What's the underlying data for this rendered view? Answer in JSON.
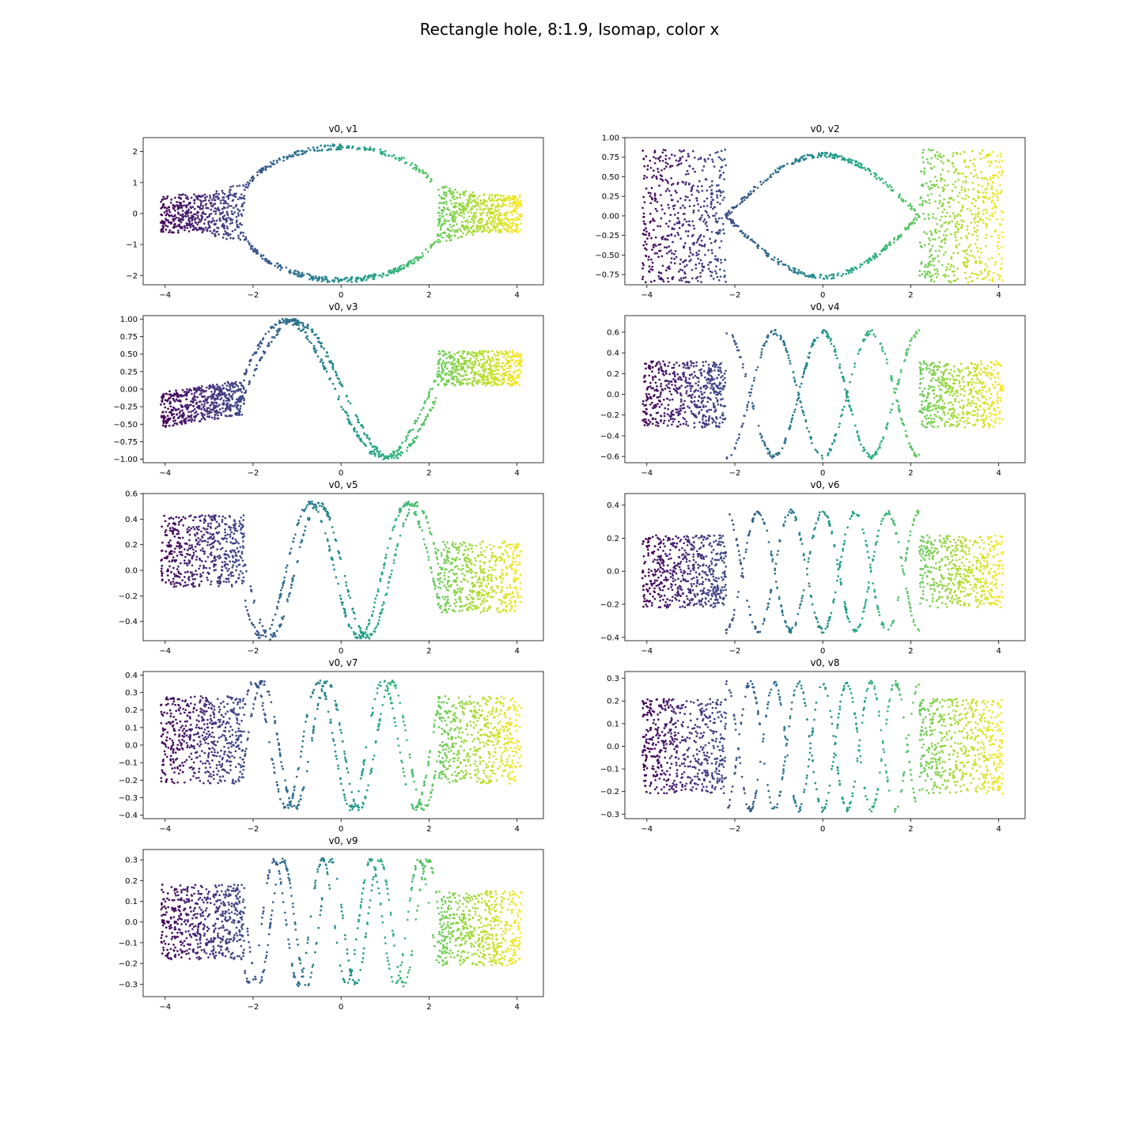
{
  "figure": {
    "title": "Rectangle hole, 8:1.9, Isomap, color x"
  },
  "chart_data": [
    {
      "type": "scatter",
      "title": "v0, v1",
      "xlabel": "",
      "ylabel": "",
      "xlim": [
        -4.5,
        4.6
      ],
      "ylim": [
        -2.3,
        2.45
      ],
      "xticks": [
        -4,
        -2,
        0,
        2,
        4
      ],
      "xtick_labels": [
        "−4",
        "−2",
        "0",
        "2",
        "4"
      ],
      "yticks": [
        -2,
        -1,
        0,
        1,
        2
      ],
      "ytick_labels": [
        "−2",
        "−1",
        "0",
        "1",
        "2"
      ],
      "colormap": "viridis",
      "color_by": "x",
      "wave": {
        "kind": "ellipse",
        "amp": 2.15,
        "end_spread": 0.65
      },
      "grid": false
    },
    {
      "type": "scatter",
      "title": "v0, v2",
      "xlabel": "",
      "ylabel": "",
      "xlim": [
        -4.5,
        4.6
      ],
      "ylim": [
        -0.88,
        1.0
      ],
      "xticks": [
        -4,
        -2,
        0,
        2,
        4
      ],
      "xtick_labels": [
        "−4",
        "−2",
        "0",
        "2",
        "4"
      ],
      "yticks": [
        -0.75,
        -0.5,
        -0.25,
        0.0,
        0.25,
        0.5,
        0.75,
        1.0
      ],
      "ytick_labels": [
        "−0.75",
        "−0.50",
        "−0.25",
        "0.00",
        "0.25",
        "0.50",
        "0.75",
        "1.00"
      ],
      "colormap": "viridis",
      "color_by": "x",
      "wave": {
        "kind": "cross",
        "amp": 0.78,
        "k": 1,
        "end_spread": 0.85
      },
      "grid": false
    },
    {
      "type": "scatter",
      "title": "v0, v3",
      "xlabel": "",
      "ylabel": "",
      "xlim": [
        -4.5,
        4.6
      ],
      "ylim": [
        -1.05,
        1.05
      ],
      "xticks": [
        -4,
        -2,
        0,
        2,
        4
      ],
      "xtick_labels": [
        "−4",
        "−2",
        "0",
        "2",
        "4"
      ],
      "yticks": [
        -1.0,
        -0.75,
        -0.5,
        -0.25,
        0.0,
        0.25,
        0.5,
        0.75,
        1.0
      ],
      "ytick_labels": [
        "−1.00",
        "−0.75",
        "−0.50",
        "−0.25",
        "0.00",
        "0.25",
        "0.50",
        "0.75",
        "1.00"
      ],
      "colormap": "viridis",
      "color_by": "x",
      "wave": {
        "kind": "single",
        "amp": 0.97,
        "k": 1,
        "end_spread": 0.25,
        "left_center": -0.3,
        "right_center": 0.3
      },
      "grid": false
    },
    {
      "type": "scatter",
      "title": "v0, v4",
      "xlabel": "",
      "ylabel": "",
      "xlim": [
        -4.5,
        4.6
      ],
      "ylim": [
        -0.66,
        0.76
      ],
      "xticks": [
        -4,
        -2,
        0,
        2,
        4
      ],
      "xtick_labels": [
        "−4",
        "−2",
        "0",
        "2",
        "4"
      ],
      "yticks": [
        -0.6,
        -0.4,
        -0.2,
        0.0,
        0.2,
        0.4,
        0.6
      ],
      "ytick_labels": [
        "−0.6",
        "−0.4",
        "−0.2",
        "0.0",
        "0.2",
        "0.4",
        "0.6"
      ],
      "colormap": "viridis",
      "color_by": "x",
      "wave": {
        "kind": "cross",
        "amp": 0.6,
        "k": 3,
        "end_spread": 0.32
      },
      "grid": false
    },
    {
      "type": "scatter",
      "title": "v0, v5",
      "xlabel": "",
      "ylabel": "",
      "xlim": [
        -4.5,
        4.6
      ],
      "ylim": [
        -0.55,
        0.6
      ],
      "xticks": [
        -4,
        -2,
        0,
        2,
        4
      ],
      "xtick_labels": [
        "−4",
        "−2",
        "0",
        "2",
        "4"
      ],
      "yticks": [
        -0.4,
        -0.2,
        0.0,
        0.2,
        0.4,
        0.6
      ],
      "ytick_labels": [
        "−0.4",
        "−0.2",
        "0.0",
        "0.2",
        "0.4",
        "0.6"
      ],
      "colormap": "viridis",
      "color_by": "x",
      "wave": {
        "kind": "single",
        "amp": 0.52,
        "k": 3,
        "end_spread": 0.28,
        "left_center": 0.15,
        "right_center": -0.05
      },
      "grid": false
    },
    {
      "type": "scatter",
      "title": "v0, v6",
      "xlabel": "",
      "ylabel": "",
      "xlim": [
        -4.5,
        4.6
      ],
      "ylim": [
        -0.42,
        0.47
      ],
      "xticks": [
        -4,
        -2,
        0,
        2,
        4
      ],
      "xtick_labels": [
        "−4",
        "−2",
        "0",
        "2",
        "4"
      ],
      "yticks": [
        -0.4,
        -0.2,
        0.0,
        0.2,
        0.4
      ],
      "ytick_labels": [
        "−0.4",
        "−0.2",
        "0.0",
        "0.2",
        "0.4"
      ],
      "colormap": "viridis",
      "color_by": "x",
      "wave": {
        "kind": "cross",
        "amp": 0.36,
        "k": 5,
        "end_spread": 0.22
      },
      "grid": false
    },
    {
      "type": "scatter",
      "title": "v0, v7",
      "xlabel": "",
      "ylabel": "",
      "xlim": [
        -4.5,
        4.6
      ],
      "ylim": [
        -0.42,
        0.42
      ],
      "xticks": [
        -4,
        -2,
        0,
        2,
        4
      ],
      "xtick_labels": [
        "−4",
        "−2",
        "0",
        "2",
        "4"
      ],
      "yticks": [
        -0.4,
        -0.3,
        -0.2,
        -0.1,
        0.0,
        0.1,
        0.2,
        0.3,
        0.4
      ],
      "ytick_labels": [
        "−0.4",
        "−0.3",
        "−0.2",
        "−0.1",
        "0.0",
        "0.1",
        "0.2",
        "0.3",
        "0.4"
      ],
      "colormap": "viridis",
      "color_by": "x",
      "wave": {
        "kind": "single",
        "amp": 0.36,
        "k": 5,
        "end_spread": 0.25,
        "left_center": 0.03,
        "right_center": 0.03
      },
      "grid": false
    },
    {
      "type": "scatter",
      "title": "v0, v8",
      "xlabel": "",
      "ylabel": "",
      "xlim": [
        -4.5,
        4.6
      ],
      "ylim": [
        -0.32,
        0.33
      ],
      "xticks": [
        -4,
        -2,
        0,
        2,
        4
      ],
      "xtick_labels": [
        "−4",
        "−2",
        "0",
        "2",
        "4"
      ],
      "yticks": [
        -0.3,
        -0.2,
        -0.1,
        0.0,
        0.1,
        0.2,
        0.3
      ],
      "ytick_labels": [
        "−0.3",
        "−0.2",
        "−0.1",
        "0.0",
        "0.1",
        "0.2",
        "0.3"
      ],
      "colormap": "viridis",
      "color_by": "x",
      "wave": {
        "kind": "cross",
        "amp": 0.28,
        "k": 7,
        "end_spread": 0.21
      },
      "grid": false
    },
    {
      "type": "scatter",
      "title": "v0, v9",
      "xlabel": "",
      "ylabel": "",
      "xlim": [
        -4.5,
        4.6
      ],
      "ylim": [
        -0.36,
        0.35
      ],
      "xticks": [
        -4,
        -2,
        0,
        2,
        4
      ],
      "xtick_labels": [
        "−4",
        "−2",
        "0",
        "2",
        "4"
      ],
      "yticks": [
        -0.3,
        -0.2,
        -0.1,
        0.0,
        0.1,
        0.2,
        0.3
      ],
      "ytick_labels": [
        "−0.3",
        "−0.2",
        "−0.1",
        "0.0",
        "0.1",
        "0.2",
        "0.3"
      ],
      "colormap": "viridis",
      "color_by": "x",
      "wave": {
        "kind": "single",
        "amp": 0.3,
        "k": 7,
        "end_spread": 0.18,
        "left_center": 0.0,
        "right_center": -0.03
      },
      "grid": false
    }
  ]
}
